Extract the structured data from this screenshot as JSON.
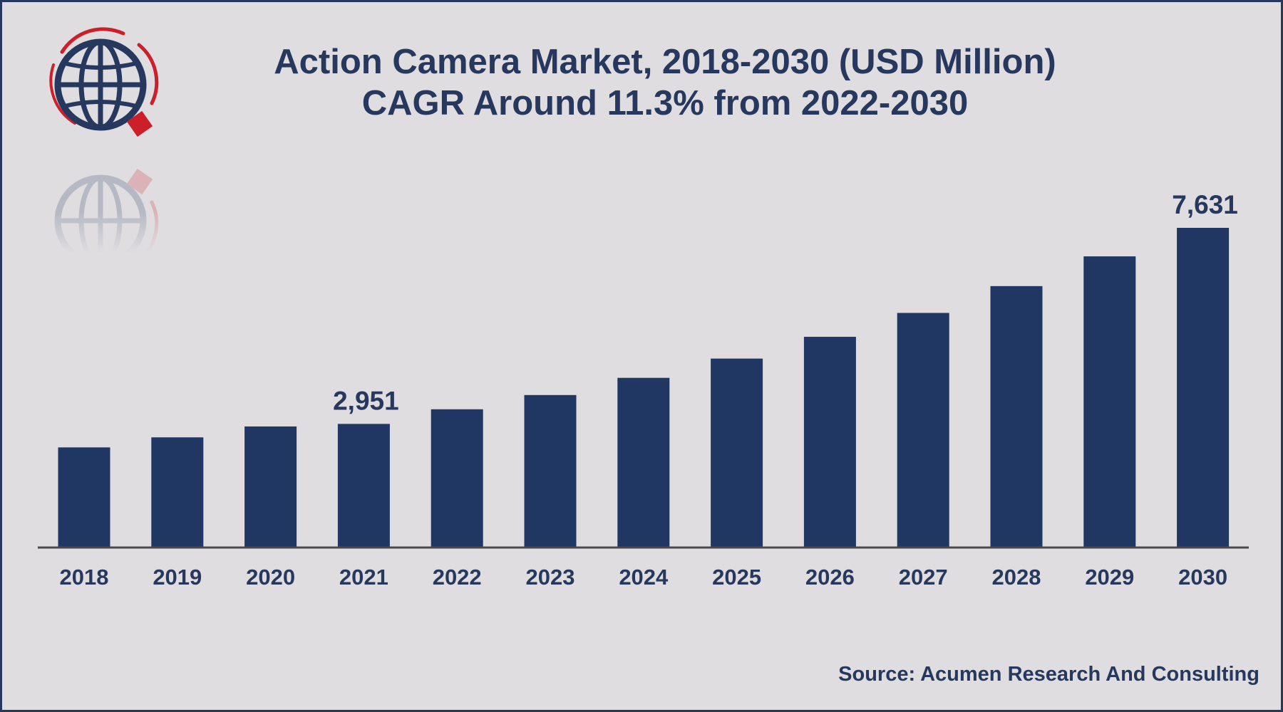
{
  "header": {
    "title_line1": "Action Camera Market, 2018-2030 (USD Million)",
    "title_line2": "CAGR Around 11.3% from 2022-2030"
  },
  "source": "Source: Acumen Research And Consulting",
  "logo": {
    "icon": "globe-icon",
    "colors": {
      "globe": "#27385e",
      "ring": "#cc1f2a"
    }
  },
  "colors": {
    "bar": "#213763",
    "text": "#27385e",
    "background": "#dfdde0",
    "axis": "#4a4a4a"
  },
  "chart_data": {
    "type": "bar",
    "title": "Action Camera Market, 2018-2030 (USD Million)",
    "subtitle": "CAGR Around 11.3% from 2022-2030",
    "categories": [
      "2018",
      "2019",
      "2020",
      "2021",
      "2022",
      "2023",
      "2024",
      "2025",
      "2026",
      "2027",
      "2028",
      "2029",
      "2030"
    ],
    "values": [
      2390,
      2630,
      2890,
      2951,
      3300,
      3640,
      4050,
      4510,
      5030,
      5600,
      6240,
      6950,
      7631
    ],
    "data_labels": {
      "2021": "2,951",
      "2030": "7,631"
    },
    "xlabel": "",
    "ylabel": "",
    "grid": false,
    "legend": "none"
  }
}
